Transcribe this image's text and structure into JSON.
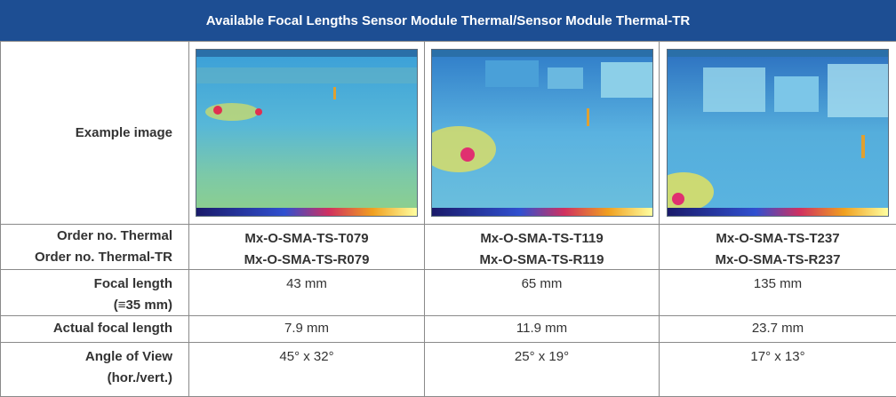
{
  "header": {
    "title": "Available Focal Lengths Sensor Module Thermal/Sensor Module Thermal-TR"
  },
  "rows": {
    "example_image": {
      "label": "Example image"
    },
    "order_no": {
      "label_thermal": "Order no. Thermal",
      "label_thermal_tr": "Order no. Thermal-TR",
      "values": [
        {
          "thermal": "Mx-O-SMA-TS-T079",
          "thermal_tr": "Mx-O-SMA-TS-R079"
        },
        {
          "thermal": "Mx-O-SMA-TS-T119",
          "thermal_tr": "Mx-O-SMA-TS-R119"
        },
        {
          "thermal": "Mx-O-SMA-TS-T237",
          "thermal_tr": "Mx-O-SMA-TS-R237"
        }
      ]
    },
    "focal_length": {
      "label_line1": "Focal length",
      "label_line2": "(≡35 mm)",
      "values": [
        "43 mm",
        "65 mm",
        "135 mm"
      ]
    },
    "actual_focal_length": {
      "label": "Actual focal length",
      "values": [
        "7.9 mm",
        "11.9 mm",
        "23.7 mm"
      ]
    },
    "angle_of_view": {
      "label_line1": "Angle of View",
      "label_line2": "(hor./vert.)",
      "values": [
        "45° x 32°",
        "25° x 19°",
        "17° x 13°"
      ]
    }
  },
  "colors": {
    "header_bg": "#1d4e93",
    "border": "#8a8a8a",
    "text": "#333333"
  }
}
